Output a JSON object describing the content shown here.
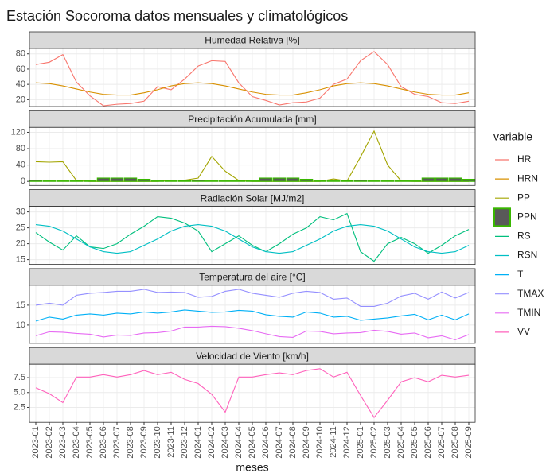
{
  "chart_data": {
    "type": "facet-line",
    "title": "Estación Socoroma datos mensuales y climatológicos",
    "x_label": "meses",
    "legend_title": "variable",
    "legend_position": "right",
    "grid": true,
    "categories": [
      "2023-01",
      "2023-02",
      "2023-03",
      "2023-04",
      "2023-05",
      "2023-06",
      "2023-07",
      "2023-08",
      "2023-09",
      "2023-10",
      "2023-11",
      "2023-12",
      "2024-01",
      "2024-02",
      "2024-03",
      "2024-04",
      "2024-05",
      "2024-06",
      "2024-07",
      "2024-08",
      "2024-09",
      "2024-10",
      "2024-11",
      "2024-12",
      "2025-01",
      "2025-02",
      "2025-03",
      "2025-04",
      "2025-05",
      "2025-06",
      "2025-07",
      "2025-08",
      "2025-09"
    ],
    "facets": [
      {
        "title": "Humedad Relativa [%]",
        "ylim": [
          11,
          87
        ],
        "yticks": [
          20,
          40,
          60,
          80
        ],
        "series": [
          {
            "name": "HR",
            "type": "line",
            "color": "#F8766D",
            "values": [
              66,
              69,
              79,
              43,
              25,
              12,
              14,
              15,
              18,
              37,
              33,
              47,
              64,
              71,
              70,
              42,
              24,
              19,
              13,
              16,
              17,
              22,
              40,
              47,
              71,
              83,
              66,
              37,
              27,
              24,
              16,
              15,
              18
            ]
          },
          {
            "name": "HRN",
            "type": "line",
            "color": "#D89000",
            "values": [
              42,
              41,
              38,
              34,
              30,
              27,
              26,
              26,
              29,
              33,
              38,
              41,
              42,
              41,
              38,
              34,
              30,
              27,
              26,
              26,
              29,
              33,
              38,
              41,
              42,
              41,
              38,
              34,
              30,
              27,
              26,
              26,
              29
            ]
          }
        ]
      },
      {
        "title": "Precipitación Acumulada [mm]",
        "ylim": [
          -10,
          132
        ],
        "yticks": [
          0,
          40,
          80,
          120
        ],
        "series": [
          {
            "name": "PP",
            "type": "line",
            "color": "#A3A500",
            "values": [
              48,
              47,
              48,
              2,
              0,
              0,
              0,
              0,
              0,
              0,
              3,
              3,
              8,
              61,
              25,
              2,
              0,
              0,
              0,
              0,
              0,
              0,
              6,
              1,
              60,
              123,
              40,
              1,
              0,
              0,
              0,
              0,
              0
            ]
          },
          {
            "name": "PPN",
            "type": "bar",
            "color": "#39B600",
            "fill": "#595959",
            "values": [
              3,
              1,
              1,
              1,
              1,
              8,
              8,
              8,
              5,
              1,
              1,
              2,
              3,
              1,
              1,
              1,
              1,
              8,
              8,
              8,
              5,
              1,
              1,
              2,
              3,
              1,
              1,
              1,
              1,
              8,
              8,
              8,
              5
            ]
          }
        ]
      },
      {
        "title": "Radiación Solar [MJ/m2]",
        "ylim": [
          13.5,
          31.75
        ],
        "yticks": [
          15,
          20,
          25,
          30
        ],
        "series": [
          {
            "name": "RS",
            "type": "line",
            "color": "#00BF7D",
            "values": [
              23.5,
              20.5,
              18,
              22.5,
              19,
              18.5,
              20,
              23,
              25.5,
              28.5,
              28,
              26.5,
              24,
              17.5,
              20,
              22.5,
              19.5,
              17.5,
              20,
              23,
              25,
              28.5,
              27.5,
              29.5,
              17.5,
              14.5,
              20,
              22,
              20,
              17,
              19.5,
              22.5,
              24.5
            ]
          },
          {
            "name": "RSN",
            "type": "line",
            "color": "#00BFC4",
            "values": [
              26,
              25.5,
              24,
              21.5,
              19,
              17.5,
              17,
              17.5,
              19.5,
              21.5,
              24,
              25.5,
              26,
              25.5,
              24,
              21.5,
              19,
              17.5,
              17,
              17.5,
              19.5,
              21.5,
              24,
              25.5,
              26,
              25.5,
              24,
              21.5,
              19,
              17.5,
              17,
              17.5,
              19.5
            ]
          }
        ]
      },
      {
        "title": "Temperatura del aire [°C]",
        "ylim": [
          5.4,
          20
        ],
        "yticks": [
          10,
          15
        ],
        "series": [
          {
            "name": "T",
            "type": "line",
            "color": "#00B0F6",
            "values": [
              11,
              12,
              11.5,
              12.5,
              12.8,
              12.5,
              13,
              12.8,
              13.3,
              13,
              13.3,
              13.8,
              13.5,
              13.2,
              13.3,
              13.7,
              13.5,
              12.6,
              12.2,
              12,
              13.3,
              13,
              12,
              12.2,
              11.2,
              11.5,
              11.8,
              12.3,
              12.7,
              11.3,
              12.5,
              11.3,
              12.8
            ]
          },
          {
            "name": "TMAX",
            "type": "line",
            "color": "#9590FF",
            "values": [
              15,
              15.5,
              15,
              17.5,
              18,
              18.2,
              18.5,
              18.5,
              19,
              18.2,
              18.3,
              18.2,
              17,
              17.2,
              18.5,
              19,
              18,
              17.5,
              17,
              18,
              18.5,
              18.2,
              16.5,
              16.8,
              14.7,
              14.7,
              15.5,
              17.3,
              18,
              16.5,
              18.3,
              16.8,
              18.2
            ]
          },
          {
            "name": "TMIN",
            "type": "line",
            "color": "#E76BF3",
            "values": [
              7.3,
              8.3,
              8.2,
              7.9,
              7.7,
              7,
              7.5,
              7.4,
              8,
              8.1,
              8.5,
              9.5,
              9.5,
              9.7,
              9.6,
              9.2,
              8.6,
              7.8,
              7.1,
              6.9,
              8.5,
              8.4,
              7.8,
              8,
              8.1,
              8.7,
              8.4,
              7.7,
              8,
              6.8,
              7.3,
              6.3,
              7.6
            ]
          }
        ]
      },
      {
        "title": "Velocidad de Viento [km/h]",
        "ylim": [
          0,
          9.75
        ],
        "yticks": [
          2.5,
          {
            "value": 5,
            "label": "5.0"
          },
          7.5
        ],
        "series": [
          {
            "name": "VV",
            "type": "line",
            "color": "#FF62BC",
            "values": [
              5.8,
              4.8,
              3.3,
              7.6,
              7.6,
              8,
              7.6,
              8,
              8.7,
              8,
              8.4,
              7.2,
              6.5,
              4.7,
              1.7,
              7.6,
              7.6,
              8,
              8.3,
              8,
              8.7,
              9,
              7.6,
              8.4,
              4.5,
              0.8,
              3.7,
              6.8,
              7.5,
              6.8,
              7.9,
              7.6,
              7.9
            ]
          }
        ]
      }
    ]
  }
}
